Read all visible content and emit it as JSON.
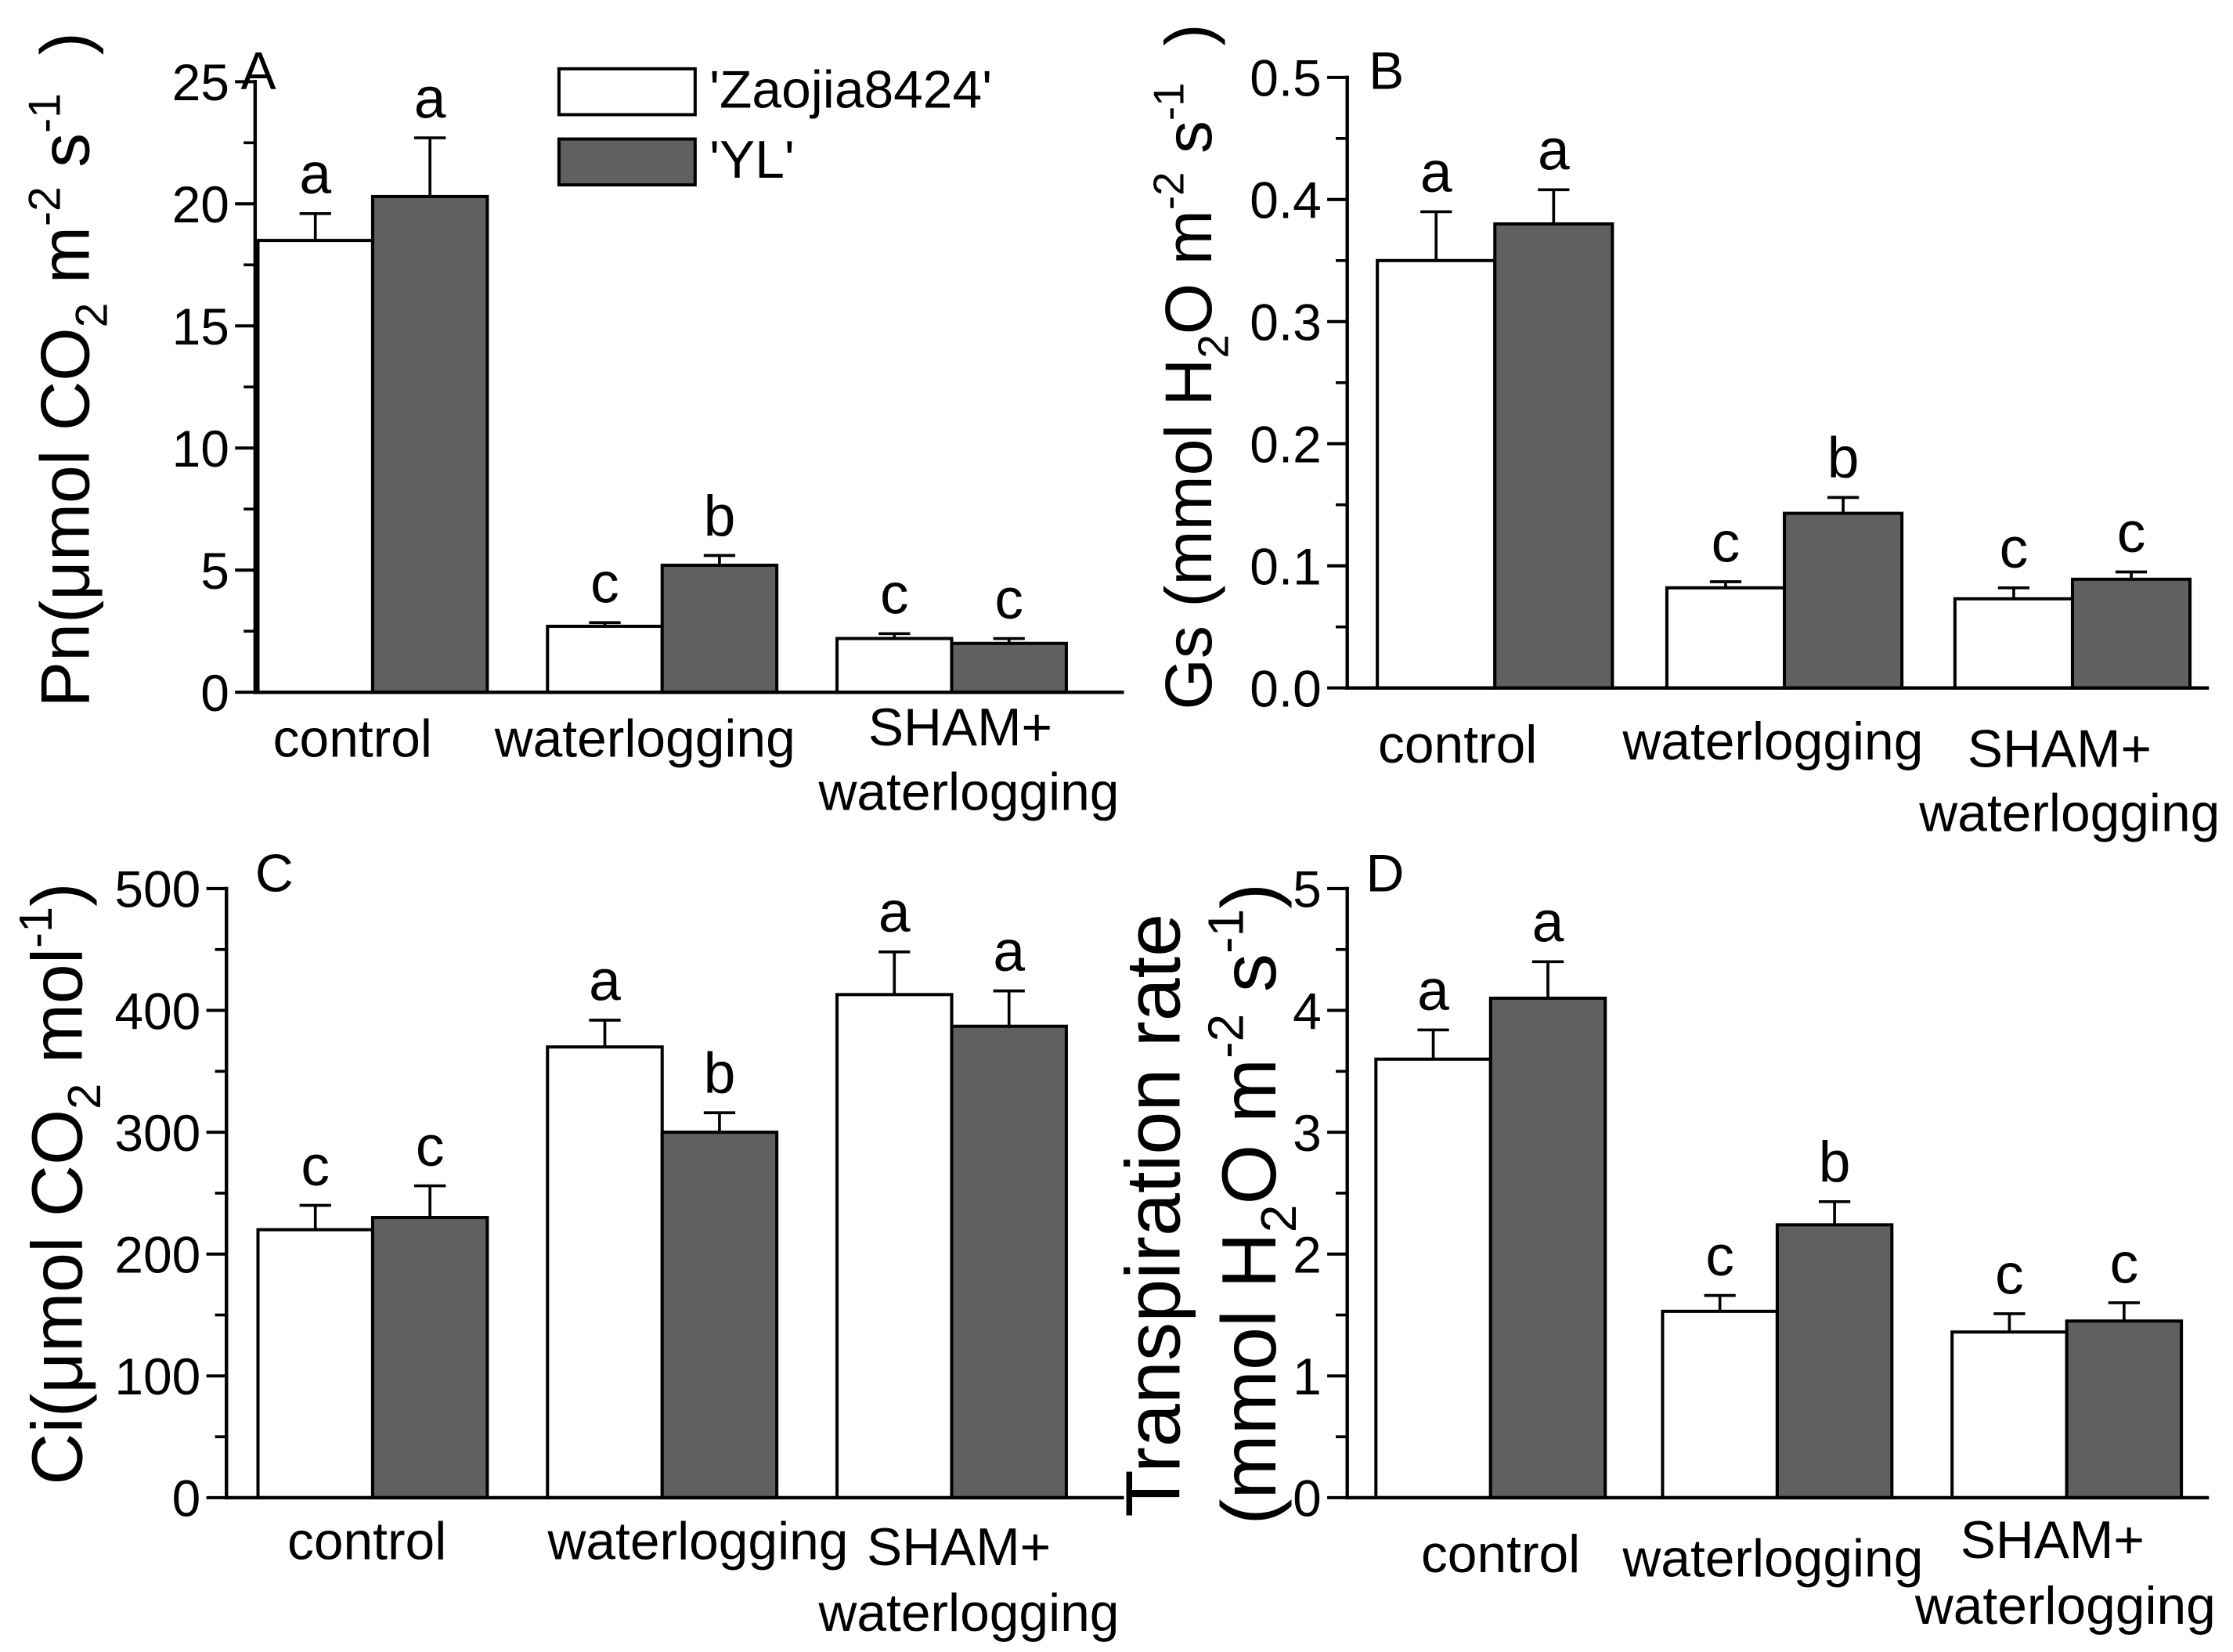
{
  "colors": {
    "series": [
      "#ffffff",
      "#606060"
    ],
    "stroke": "#000000",
    "background": "#ffffff"
  },
  "chart_data": [
    {
      "type": "bar",
      "panel_label": "A",
      "xlabel": "",
      "ylabel": [
        [
          {
            "text": "Pn(μmol CO"
          },
          {
            "text": "2",
            "sub": true
          },
          {
            "text": " m"
          },
          {
            "text": "-2",
            "sup": true
          },
          {
            "text": " s"
          },
          {
            "text": "-1",
            "sup": true
          },
          {
            "text": "  )"
          }
        ]
      ],
      "ylim": [
        0,
        25
      ],
      "yticks": [
        0,
        5,
        10,
        15,
        20,
        25
      ],
      "ytick_labels": [
        "0",
        "5",
        "10",
        "15",
        "20",
        "25"
      ],
      "grid": false,
      "categories": [
        [
          "control"
        ],
        [
          "waterlogging"
        ],
        [
          "SHAM+",
          "waterlogging"
        ]
      ],
      "legend": {
        "position": "top-center"
      },
      "series": [
        {
          "name": "'Zaojia8424'",
          "values": [
            18.5,
            2.7,
            2.2
          ],
          "errors": [
            1.1,
            0.15,
            0.2
          ],
          "letters": [
            "a",
            "c",
            "c"
          ]
        },
        {
          "name": "'YL'",
          "values": [
            20.3,
            5.2,
            2.0
          ],
          "errors": [
            2.4,
            0.4,
            0.2
          ],
          "letters": [
            "a",
            "b",
            "c"
          ]
        }
      ]
    },
    {
      "type": "bar",
      "panel_label": "B",
      "xlabel": "",
      "ylabel": [
        [
          {
            "text": "Gs (mmol H"
          },
          {
            "text": "2",
            "sub": true
          },
          {
            "text": "O m"
          },
          {
            "text": "-2",
            "sup": true
          },
          {
            "text": " s"
          },
          {
            "text": "-1",
            "sup": true
          },
          {
            "text": "  )"
          }
        ]
      ],
      "ylim": [
        0,
        0.5
      ],
      "yticks": [
        0,
        0.1,
        0.2,
        0.3,
        0.4,
        0.5
      ],
      "ytick_labels": [
        "0.0",
        "0.1",
        "0.2",
        "0.3",
        "0.4",
        "0.5"
      ],
      "grid": false,
      "categories": [
        [
          "control"
        ],
        [
          "waterlogging"
        ],
        [
          "SHAM+",
          "waterlogging"
        ]
      ],
      "series": [
        {
          "values": [
            0.35,
            0.082,
            0.073
          ],
          "errors": [
            0.04,
            0.005,
            0.009
          ],
          "letters": [
            "a",
            "c",
            "c"
          ]
        },
        {
          "values": [
            0.38,
            0.143,
            0.089
          ],
          "errors": [
            0.028,
            0.013,
            0.006
          ],
          "letters": [
            "a",
            "b",
            "c"
          ]
        }
      ]
    },
    {
      "type": "bar",
      "panel_label": "C",
      "xlabel": "",
      "ylabel": [
        [
          {
            "text": "Ci(μmol CO"
          },
          {
            "text": "2",
            "sub": true
          },
          {
            "text": " mol"
          },
          {
            "text": "-1",
            "sup": true
          },
          {
            "text": ")"
          }
        ]
      ],
      "ylim": [
        0,
        500
      ],
      "yticks": [
        0,
        100,
        200,
        300,
        400,
        500
      ],
      "ytick_labels": [
        "0",
        "100",
        "200",
        "300",
        "400",
        "500"
      ],
      "grid": false,
      "categories": [
        [
          "control"
        ],
        [
          "waterlogging"
        ],
        [
          "SHAM+",
          "waterlogging"
        ]
      ],
      "series": [
        {
          "values": [
            220,
            370,
            413
          ],
          "errors": [
            20,
            22,
            35
          ],
          "letters": [
            "c",
            "a",
            "a"
          ]
        },
        {
          "values": [
            230,
            300,
            387
          ],
          "errors": [
            26,
            16,
            29
          ],
          "letters": [
            "c",
            "b",
            "a"
          ]
        }
      ]
    },
    {
      "type": "bar",
      "panel_label": "D",
      "xlabel": "",
      "ylabel": [
        [
          {
            "text": "Transpiration rate"
          }
        ],
        [
          {
            "text": "(mmol H"
          },
          {
            "text": "2",
            "sub": true
          },
          {
            "text": "O m"
          },
          {
            "text": "-2",
            "sup": true
          },
          {
            "text": " s"
          },
          {
            "text": "-1",
            "sup": true
          },
          {
            "text": ")"
          }
        ]
      ],
      "ylim": [
        0,
        5
      ],
      "yticks": [
        0,
        1,
        2,
        3,
        4,
        5
      ],
      "ytick_labels": [
        "0",
        "1",
        "2",
        "3",
        "4",
        "5"
      ],
      "grid": false,
      "categories": [
        [
          "control"
        ],
        [
          "waterlogging"
        ],
        [
          "SHAM+",
          "waterlogging"
        ]
      ],
      "series": [
        {
          "values": [
            3.6,
            1.53,
            1.36
          ],
          "errors": [
            0.24,
            0.13,
            0.15
          ],
          "letters": [
            "a",
            "c",
            "c"
          ]
        },
        {
          "values": [
            4.1,
            2.24,
            1.45
          ],
          "errors": [
            0.3,
            0.19,
            0.15
          ],
          "letters": [
            "a",
            "b",
            "c"
          ]
        }
      ]
    }
  ]
}
